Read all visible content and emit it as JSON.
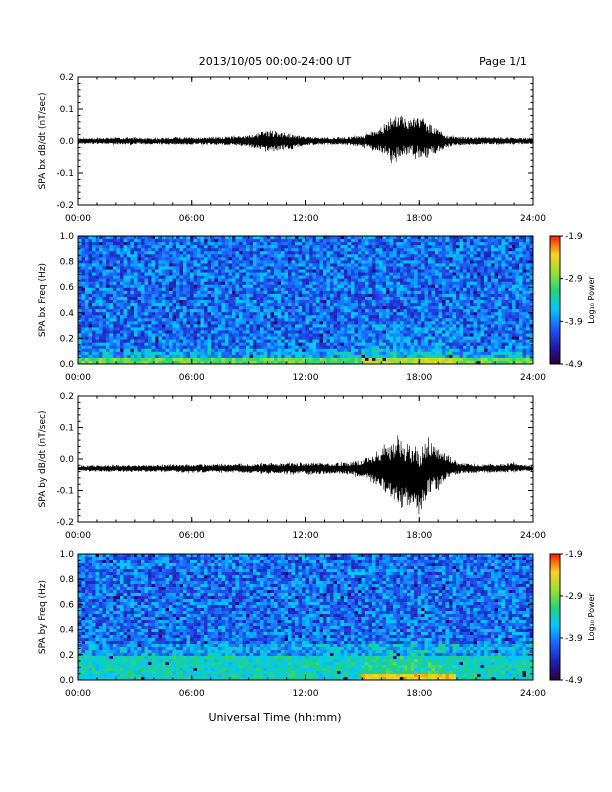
{
  "header": {
    "title": "2013/10/05  00:00-24:00 UT",
    "page": "Page 1/1"
  },
  "footer": {
    "xlabel": "Universal Time (hh:mm)"
  },
  "colors": {
    "trace": "#000000",
    "axis": "#000000",
    "colormap": [
      "#2a003a",
      "#1f1fb0",
      "#1e5fff",
      "#00c8ff",
      "#22d37a",
      "#9be22e",
      "#ffd21e",
      "#ff1a00"
    ]
  },
  "chart_data": [
    {
      "type": "line",
      "ylabel": "SPA bx dB/dt (nT/sec)",
      "xlim": [
        0,
        24
      ],
      "ylim": [
        -0.2,
        0.2
      ],
      "x_ticks": [
        "00:00",
        "06:00",
        "12:00",
        "18:00",
        "24:00"
      ],
      "y_ticks": [
        "0.2",
        "0.1",
        "0.0",
        "-0.1",
        "-0.2"
      ],
      "y_tick_values": [
        0.2,
        0.1,
        0.0,
        -0.1,
        -0.2
      ],
      "baseline": 0.0,
      "series": [
        {
          "x": [
            0,
            2,
            4,
            6,
            8,
            9,
            10,
            11,
            12,
            13,
            14,
            15,
            16,
            16.5,
            17,
            17.5,
            18,
            18.5,
            19,
            19.5,
            20,
            21,
            22,
            23,
            24
          ],
          "y_min": [
            -0.01,
            -0.012,
            -0.012,
            -0.013,
            -0.015,
            -0.02,
            -0.04,
            -0.03,
            -0.015,
            -0.013,
            -0.013,
            -0.02,
            -0.04,
            -0.07,
            -0.06,
            -0.05,
            -0.06,
            -0.05,
            -0.04,
            -0.02,
            -0.015,
            -0.012,
            -0.012,
            -0.012,
            -0.01
          ],
          "y_max": [
            0.01,
            0.012,
            0.012,
            0.013,
            0.016,
            0.02,
            0.04,
            0.03,
            0.015,
            0.013,
            0.013,
            0.02,
            0.05,
            0.08,
            0.1,
            0.07,
            0.09,
            0.06,
            0.04,
            0.02,
            0.015,
            0.012,
            0.014,
            0.012,
            0.01
          ]
        }
      ]
    },
    {
      "type": "heatmap",
      "ylabel": "SPA bx Freq (Hz)",
      "xlim": [
        0,
        24
      ],
      "ylim": [
        0,
        1.0
      ],
      "x_ticks": [
        "00:00",
        "06:00",
        "12:00",
        "18:00",
        "24:00"
      ],
      "y_ticks": [
        "1.0",
        "0.8",
        "0.6",
        "0.4",
        "0.2",
        "0.0"
      ],
      "y_tick_values": [
        1.0,
        0.8,
        0.6,
        0.4,
        0.2,
        0.0
      ],
      "colorbar": {
        "label": "Log₁₀ Power",
        "ticks": [
          "-1.9",
          "-2.9",
          "-3.9",
          "-4.9"
        ],
        "tick_values": [
          -1.9,
          -2.9,
          -3.9,
          -4.9
        ],
        "range": [
          -4.9,
          -1.9
        ]
      },
      "background_level": -4.0,
      "low_freq_enhancement": {
        "freq_max": 0.05,
        "level": -3.0
      },
      "event": {
        "start": 15.0,
        "end": 20.0,
        "level": -2.6
      }
    },
    {
      "type": "line",
      "ylabel": "SPA by dB/dt (nT/sec)",
      "xlim": [
        0,
        24
      ],
      "ylim": [
        -0.2,
        0.2
      ],
      "x_ticks": [
        "00:00",
        "06:00",
        "12:00",
        "18:00",
        "24:00"
      ],
      "y_ticks": [
        "0.2",
        "0.1",
        "0.0",
        "-0.1",
        "-0.2"
      ],
      "y_tick_values": [
        0.2,
        0.1,
        0.0,
        -0.1,
        -0.2
      ],
      "baseline": -0.03,
      "series": [
        {
          "x": [
            0,
            2,
            4,
            6,
            8,
            10,
            12,
            14,
            15,
            16,
            16.5,
            17,
            17.5,
            18,
            18.5,
            19,
            19.5,
            20,
            21,
            22,
            23,
            24
          ],
          "y_min": [
            -0.04,
            -0.042,
            -0.042,
            -0.045,
            -0.045,
            -0.048,
            -0.05,
            -0.05,
            -0.06,
            -0.1,
            -0.14,
            -0.17,
            -0.16,
            -0.19,
            -0.12,
            -0.1,
            -0.07,
            -0.05,
            -0.045,
            -0.045,
            -0.043,
            -0.04
          ],
          "y_max": [
            -0.02,
            -0.018,
            -0.018,
            -0.015,
            -0.015,
            -0.012,
            -0.01,
            -0.01,
            0.0,
            0.04,
            0.06,
            0.08,
            0.06,
            0.05,
            0.07,
            0.04,
            0.02,
            -0.01,
            -0.015,
            -0.015,
            -0.01,
            -0.02
          ]
        }
      ]
    },
    {
      "type": "heatmap",
      "ylabel": "SPA by Freq (Hz)",
      "xlim": [
        0,
        24
      ],
      "ylim": [
        0,
        1.0
      ],
      "x_ticks": [
        "00:00",
        "06:00",
        "12:00",
        "18:00",
        "24:00"
      ],
      "y_ticks": [
        "1.0",
        "0.8",
        "0.6",
        "0.4",
        "0.2",
        "0.0"
      ],
      "y_tick_values": [
        1.0,
        0.8,
        0.6,
        0.4,
        0.2,
        0.0
      ],
      "colorbar": {
        "label": "Log₁₀ Power",
        "ticks": [
          "-1.9",
          "-2.9",
          "-3.9",
          "-4.9"
        ],
        "tick_values": [
          -1.9,
          -2.9,
          -3.9,
          -4.9
        ],
        "range": [
          -4.9,
          -1.9
        ]
      },
      "background_level": -4.0,
      "low_freq_enhancement": {
        "freq_max": 0.2,
        "level": -3.4
      },
      "event": {
        "start": 15.0,
        "end": 20.0,
        "level": -2.4
      }
    }
  ]
}
